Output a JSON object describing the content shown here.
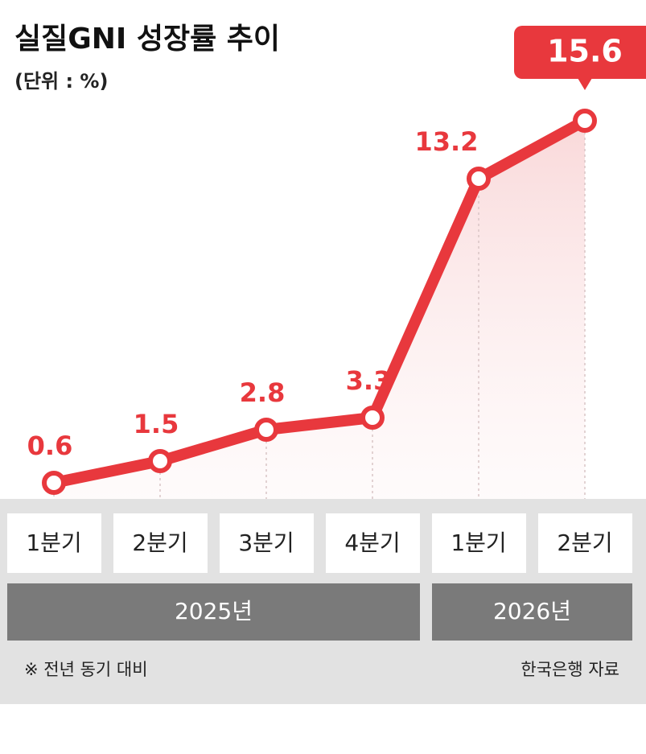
{
  "chart_data": {
    "type": "line",
    "title": "실질GNI 성장률 추이",
    "subtitle": "(단위 : %)",
    "categories": [
      "1분기",
      "2분기",
      "3분기",
      "4분기",
      "1분기",
      "2분기"
    ],
    "values": [
      0.6,
      1.5,
      2.8,
      3.3,
      13.2,
      15.6
    ],
    "color": "#e8383d",
    "groups": [
      "2025년",
      "2026년"
    ],
    "note": "※ 전년 동기 대비",
    "source": "한국은행 자료"
  }
}
